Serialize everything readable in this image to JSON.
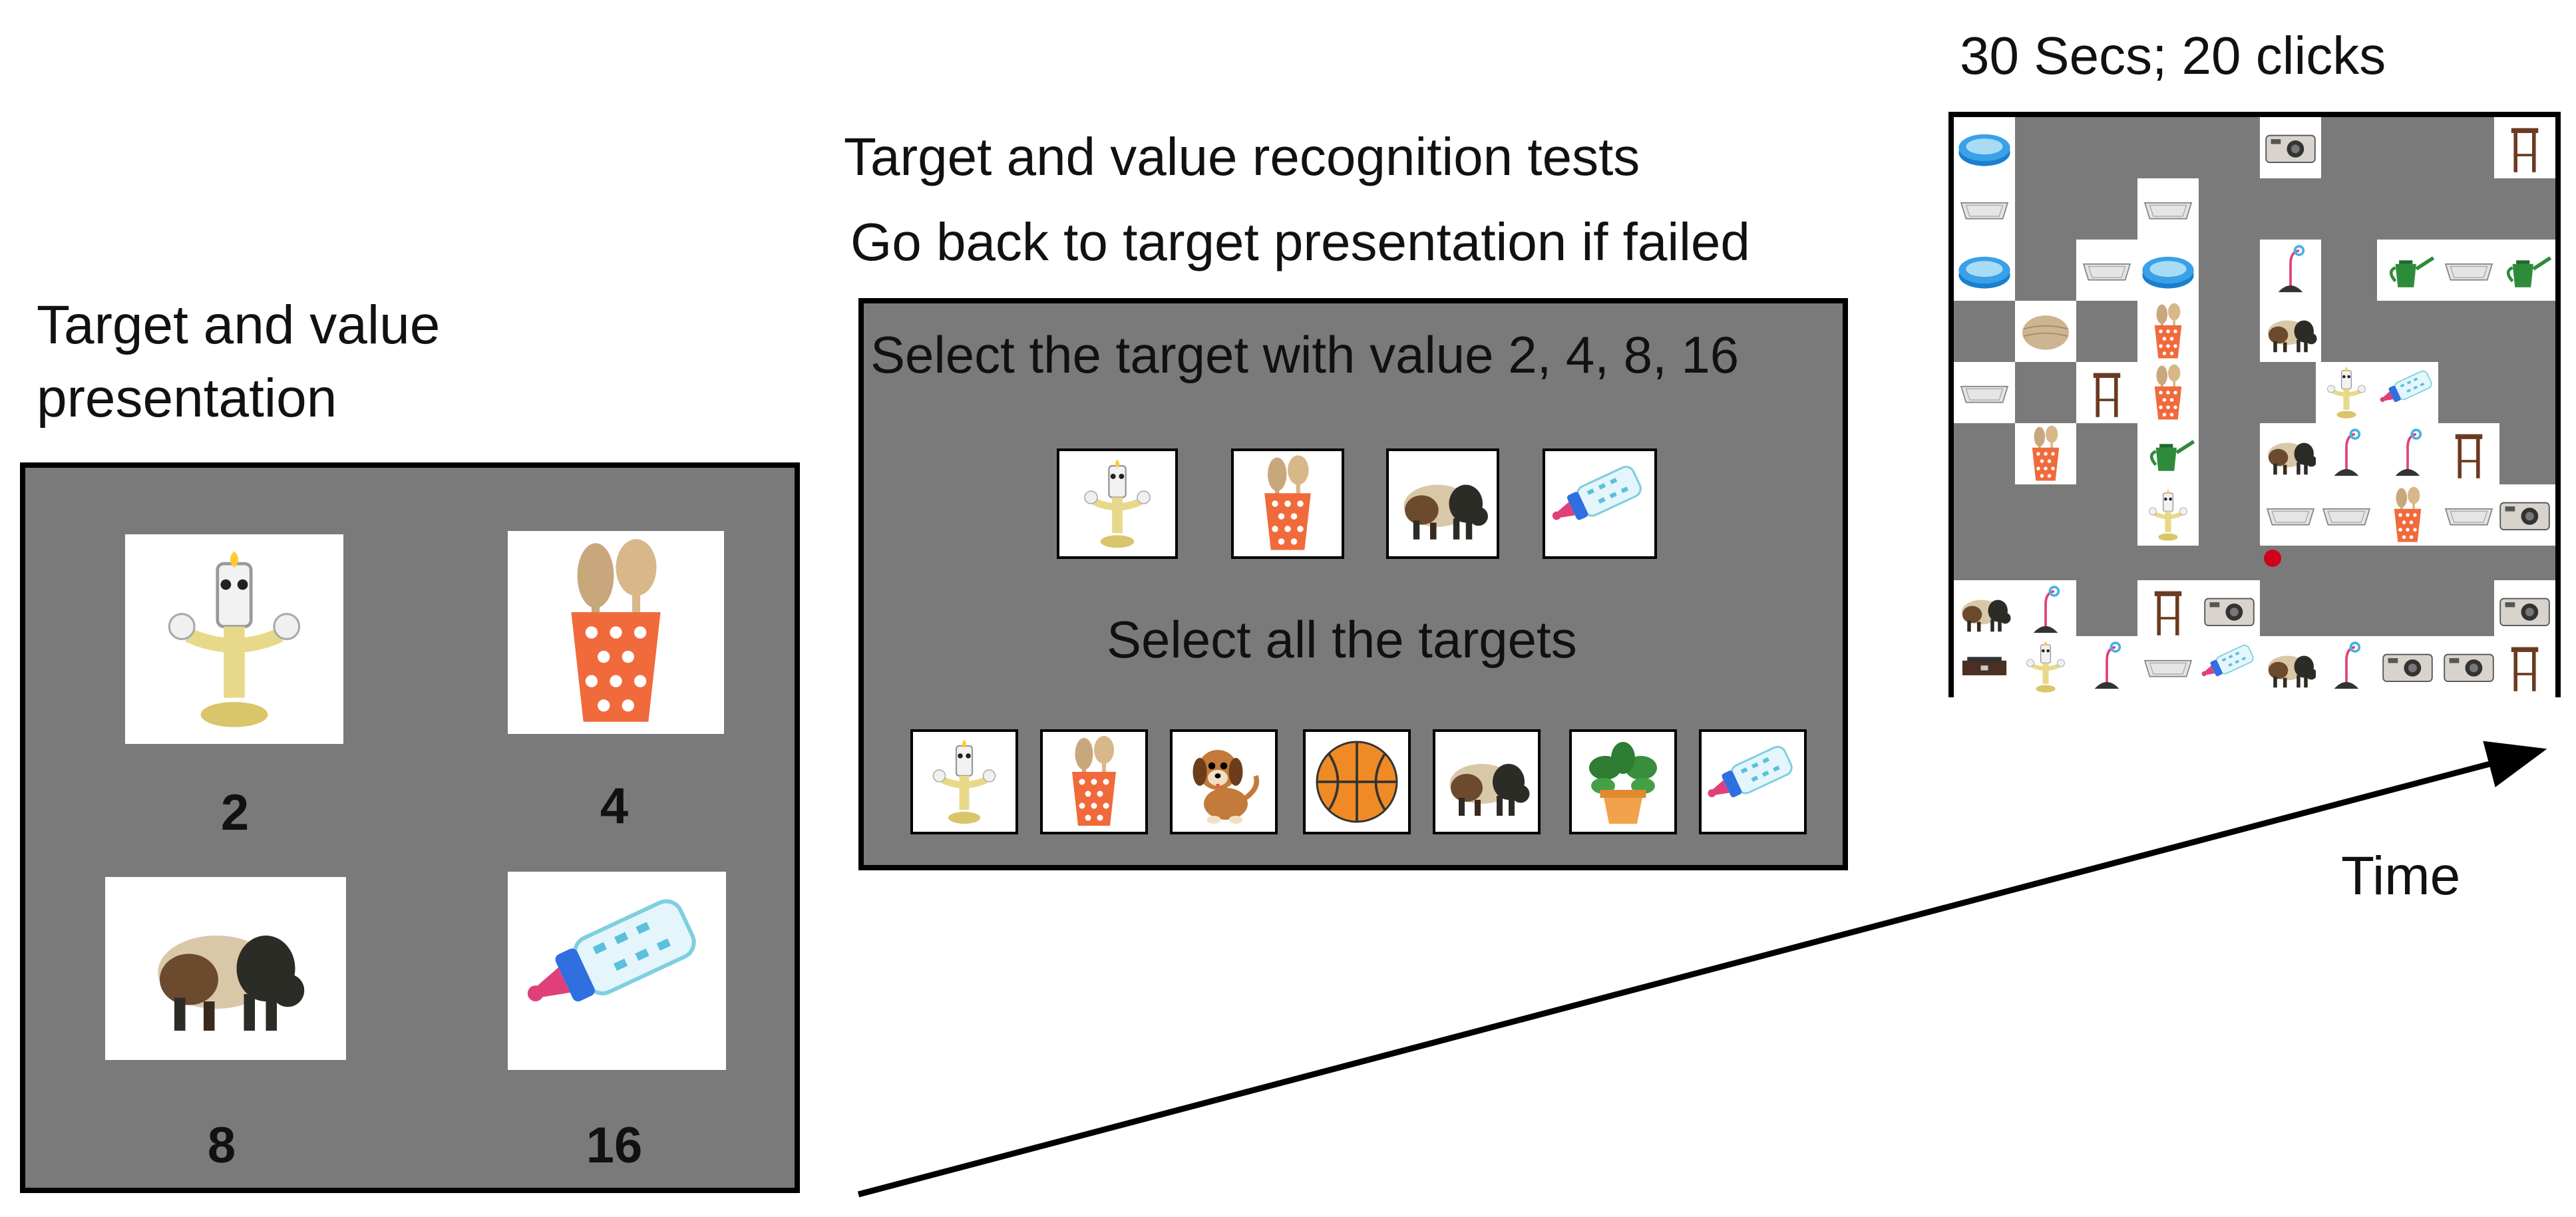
{
  "left_panel": {
    "title_line1": "Target and value",
    "title_line2": "presentation",
    "values": [
      "2",
      "4",
      "8",
      "16"
    ]
  },
  "middle_panel": {
    "heading_line1": "Target and value recognition tests",
    "heading_line2": "Go back to target presentation if failed",
    "prompt_value": "Select the target with value 2, 4, 8, 16",
    "prompt_all": "Select all the targets"
  },
  "right_panel": {
    "heading": "30 Secs; 20 clicks"
  },
  "arrow": {
    "label": "Time"
  },
  "icons": {
    "targets": [
      "candelabra-icon",
      "utensil-cup-icon",
      "bison-icon",
      "baby-bottle-icon"
    ],
    "distractors": [
      "dog-icon",
      "basketball-icon",
      "potted-plant-icon"
    ],
    "maze_items": [
      "pool-icon",
      "camera-icon",
      "stool-icon",
      "tray-icon",
      "watering-can-icon",
      "lamp-icon",
      "basket-icon",
      "scale-icon"
    ]
  },
  "colors": {
    "panel_gray": "#7a7a7a",
    "marker_red": "#d0021b"
  }
}
